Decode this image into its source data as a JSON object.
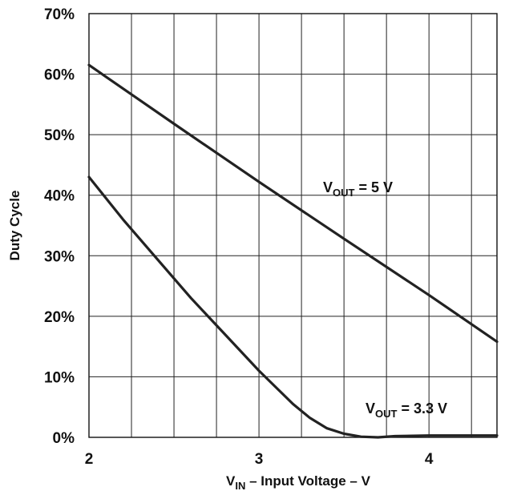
{
  "chart_data": {
    "type": "line",
    "title": "",
    "xlabel": {
      "main": "V",
      "sub": "IN",
      "rest": " – Input Voltage – V"
    },
    "ylabel": "Duty Cycle",
    "xlim": [
      2,
      4.4
    ],
    "ylim": [
      0,
      70
    ],
    "x_ticks": [
      "2",
      "3",
      "4"
    ],
    "y_ticks": [
      "0%",
      "10%",
      "20%",
      "30%",
      "40%",
      "50%",
      "60%",
      "70%"
    ],
    "grid": true,
    "series": [
      {
        "name": {
          "main": "V",
          "sub": "OUT",
          "rest": " = 5 V"
        },
        "color": "#222222",
        "points": [
          [
            2.0,
            61.5
          ],
          [
            2.5,
            51.8
          ],
          [
            3.0,
            42.2
          ],
          [
            3.5,
            32.8
          ],
          [
            4.0,
            23.5
          ],
          [
            4.4,
            15.8
          ]
        ]
      },
      {
        "name": {
          "main": "V",
          "sub": "OUT",
          "rest": " = 3.3 V"
        },
        "color": "#222222",
        "points": [
          [
            2.0,
            43.0
          ],
          [
            2.2,
            36.0
          ],
          [
            2.4,
            29.5
          ],
          [
            2.6,
            23.0
          ],
          [
            2.8,
            17.0
          ],
          [
            3.0,
            11.0
          ],
          [
            3.2,
            5.5
          ],
          [
            3.3,
            3.2
          ],
          [
            3.4,
            1.5
          ],
          [
            3.5,
            0.6
          ],
          [
            3.6,
            0.1
          ],
          [
            3.7,
            0.0
          ],
          [
            3.8,
            0.2
          ],
          [
            4.0,
            0.3
          ],
          [
            4.4,
            0.3
          ]
        ]
      }
    ]
  }
}
